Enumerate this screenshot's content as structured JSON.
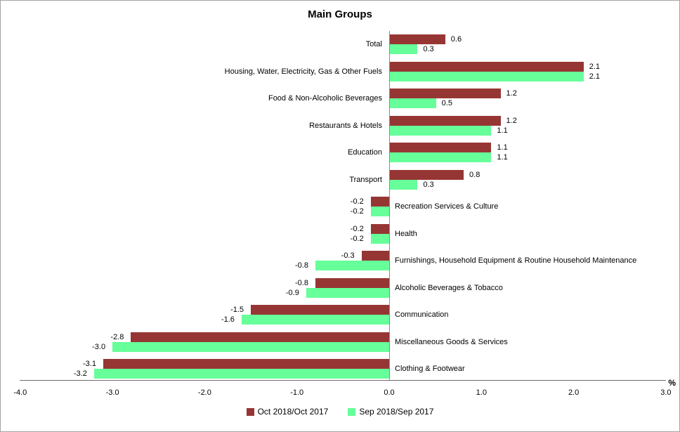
{
  "chart_data": {
    "type": "bar",
    "orientation": "horizontal",
    "title": "Main Groups",
    "unit_label": "%",
    "categories": [
      "Total",
      "Housing, Water, Electricity, Gas & Other Fuels",
      "Food & Non-Alcoholic Beverages",
      "Restaurants & Hotels",
      "Education",
      "Transport",
      "Recreation Services & Culture",
      "Health",
      "Furnishings, Household Equipment & Routine Household Maintenance",
      "Alcoholic Beverages & Tobacco",
      "Communication",
      "Miscellaneous Goods & Services",
      "Clothing & Footwear"
    ],
    "series": [
      {
        "name": "Oct 2018/Oct 2017",
        "color": "#963634",
        "values": [
          0.6,
          2.1,
          1.2,
          1.2,
          1.1,
          0.8,
          -0.2,
          -0.2,
          -0.3,
          -0.8,
          -1.5,
          -2.8,
          -3.1
        ]
      },
      {
        "name": "Sep 2018/Sep 2017",
        "color": "#66FF99",
        "values": [
          0.3,
          2.1,
          0.5,
          1.1,
          1.1,
          0.3,
          -0.2,
          -0.2,
          -0.8,
          -0.9,
          -1.6,
          -3.0,
          -3.2
        ]
      }
    ],
    "xlim": [
      -4.0,
      3.0
    ],
    "x_ticks": [
      "-4.0",
      "-3.0",
      "-2.0",
      "-1.0",
      "0.0",
      "1.0",
      "2.0",
      "3.0"
    ],
    "value_labels_shown": true,
    "grid": false,
    "legend_position": "bottom"
  }
}
